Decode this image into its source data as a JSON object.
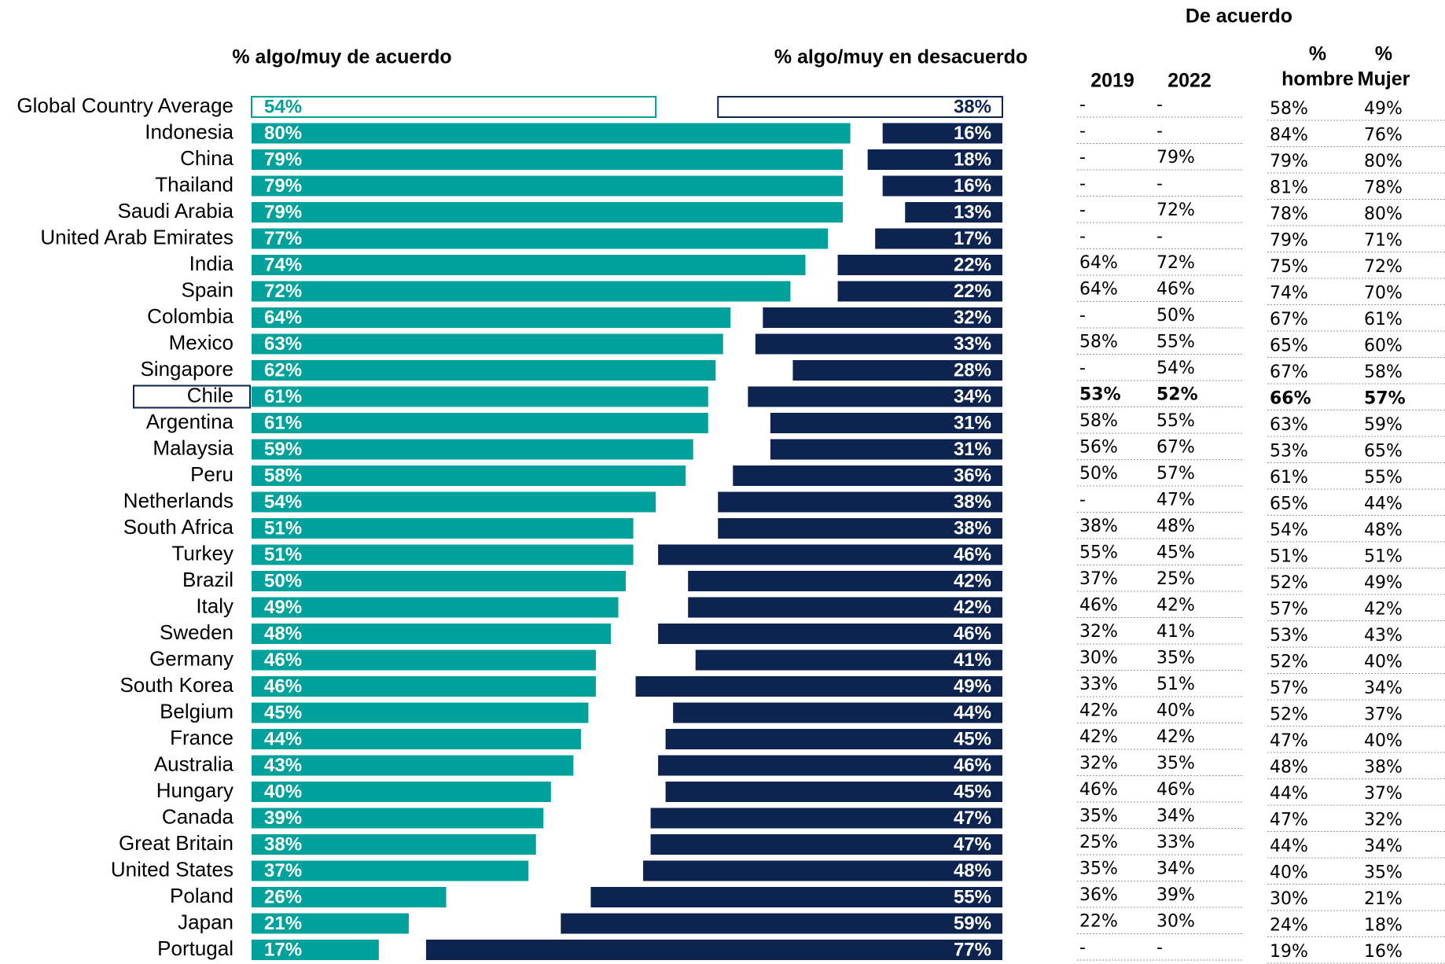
{
  "chart_data": {
    "type": "diverging_bar",
    "categories": [
      "Global Country Average",
      "Indonesia",
      "China",
      "Thailand",
      "Saudi Arabia",
      "United Arab Emirates",
      "India",
      "Spain",
      "Colombia",
      "Mexico",
      "Singapore",
      "Chile",
      "Argentina",
      "Malaysia",
      "Peru",
      "Netherlands",
      "South Africa",
      "Turkey",
      "Brazil",
      "Italy",
      "Sweden",
      "Germany",
      "South Korea",
      "Belgium",
      "France",
      "Australia",
      "Hungary",
      "Canada",
      "Great Britain",
      "United States",
      "Poland",
      "Japan",
      "Portugal"
    ],
    "series": [
      {
        "name": "% algo/muy de acuerdo",
        "color": "#00a19a",
        "values": [
          54,
          80,
          79,
          79,
          79,
          77,
          74,
          72,
          64,
          63,
          62,
          61,
          61,
          59,
          58,
          54,
          51,
          51,
          50,
          49,
          48,
          46,
          46,
          45,
          44,
          43,
          40,
          39,
          38,
          37,
          26,
          21,
          17
        ],
        "value_labels": [
          "54%",
          "80%",
          "79%",
          "79%",
          "79%",
          "77%",
          "74%",
          "72%",
          "64%",
          "63%",
          "62%",
          "61%",
          "61%",
          "59%",
          "58%",
          "54%",
          "51%",
          "51%",
          "50%",
          "49%",
          "48%",
          "46%",
          "46%",
          "45%",
          "44%",
          "43%",
          "40%",
          "39%",
          "38%",
          "37%",
          "26%",
          "21%",
          "17%"
        ]
      },
      {
        "name": "% algo/muy en desacuerdo",
        "color": "#0d2350",
        "values": [
          38,
          16,
          18,
          16,
          13,
          17,
          22,
          22,
          32,
          33,
          28,
          34,
          31,
          31,
          36,
          38,
          38,
          46,
          42,
          42,
          46,
          41,
          49,
          44,
          45,
          46,
          45,
          47,
          47,
          48,
          55,
          59,
          77
        ],
        "value_labels": [
          "38%",
          "16%",
          "18%",
          "16%",
          "13%",
          "17%",
          "22%",
          "22%",
          "32%",
          "33%",
          "28%",
          "34%",
          "31%",
          "31%",
          "36%",
          "38%",
          "38%",
          "46%",
          "42%",
          "42%",
          "46%",
          "41%",
          "49%",
          "44%",
          "45%",
          "46%",
          "45%",
          "47%",
          "47%",
          "48%",
          "55%",
          "59%",
          "77%"
        ]
      }
    ],
    "outline_row": 0,
    "highlight": 11,
    "highlight_color": "#3a4fa0"
  },
  "table": {
    "title": "De acuerdo",
    "columns": [
      [
        "2019"
      ],
      [
        "2022"
      ],
      [
        "%",
        "hombre"
      ],
      [
        "%",
        "Mujer"
      ]
    ],
    "rows": [
      [
        "-",
        "-",
        "58%",
        "49%"
      ],
      [
        "-",
        "-",
        "84%",
        "76%"
      ],
      [
        "-",
        "79%",
        "79%",
        "80%"
      ],
      [
        "-",
        "-",
        "81%",
        "78%"
      ],
      [
        "-",
        "72%",
        "78%",
        "80%"
      ],
      [
        "-",
        "-",
        "79%",
        "71%"
      ],
      [
        "64%",
        "72%",
        "75%",
        "72%"
      ],
      [
        "64%",
        "46%",
        "74%",
        "70%"
      ],
      [
        "-",
        "50%",
        "67%",
        "61%"
      ],
      [
        "58%",
        "55%",
        "65%",
        "60%"
      ],
      [
        "-",
        "54%",
        "67%",
        "58%"
      ],
      [
        "53%",
        "52%",
        "66%",
        "57%"
      ],
      [
        "58%",
        "55%",
        "63%",
        "59%"
      ],
      [
        "56%",
        "67%",
        "53%",
        "65%"
      ],
      [
        "50%",
        "57%",
        "61%",
        "55%"
      ],
      [
        "-",
        "47%",
        "65%",
        "44%"
      ],
      [
        "38%",
        "48%",
        "54%",
        "48%"
      ],
      [
        "55%",
        "45%",
        "51%",
        "51%"
      ],
      [
        "37%",
        "25%",
        "52%",
        "49%"
      ],
      [
        "46%",
        "42%",
        "57%",
        "42%"
      ],
      [
        "32%",
        "41%",
        "53%",
        "43%"
      ],
      [
        "30%",
        "35%",
        "52%",
        "40%"
      ],
      [
        "33%",
        "51%",
        "57%",
        "34%"
      ],
      [
        "42%",
        "40%",
        "52%",
        "37%"
      ],
      [
        "42%",
        "42%",
        "47%",
        "40%"
      ],
      [
        "32%",
        "35%",
        "48%",
        "38%"
      ],
      [
        "46%",
        "46%",
        "44%",
        "37%"
      ],
      [
        "35%",
        "34%",
        "47%",
        "32%"
      ],
      [
        "25%",
        "33%",
        "44%",
        "34%"
      ],
      [
        "35%",
        "34%",
        "40%",
        "35%"
      ],
      [
        "36%",
        "39%",
        "30%",
        "21%"
      ],
      [
        "22%",
        "30%",
        "24%",
        "18%"
      ],
      [
        "-",
        "-",
        "19%",
        "16%"
      ]
    ]
  }
}
